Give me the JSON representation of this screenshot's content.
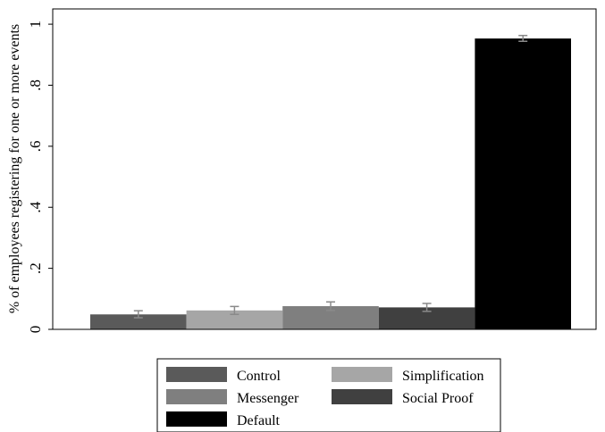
{
  "chart_data": {
    "type": "bar",
    "title": "",
    "xlabel": "",
    "ylabel": "% of employees registering for one or more events",
    "ylim": [
      0,
      1.05
    ],
    "yticks": [
      {
        "value": 0,
        "label": "0"
      },
      {
        "value": 0.2,
        "label": ".2"
      },
      {
        "value": 0.4,
        "label": ".4"
      },
      {
        "value": 0.6,
        "label": ".6"
      },
      {
        "value": 0.8,
        "label": ".8"
      },
      {
        "value": 1,
        "label": "1"
      }
    ],
    "grid": false,
    "legend_position": "bottom",
    "series": [
      {
        "name": "Control",
        "value": 0.049,
        "ci_low": 0.038,
        "ci_high": 0.061,
        "color": "#5a5a5a"
      },
      {
        "name": "Simplification",
        "value": 0.062,
        "ci_low": 0.049,
        "ci_high": 0.075,
        "color": "#a6a6a6"
      },
      {
        "name": "Messenger",
        "value": 0.076,
        "ci_low": 0.062,
        "ci_high": 0.09,
        "color": "#7f7f7f"
      },
      {
        "name": "Social Proof",
        "value": 0.072,
        "ci_low": 0.059,
        "ci_high": 0.085,
        "color": "#404040"
      },
      {
        "name": "Default",
        "value": 0.953,
        "ci_low": 0.944,
        "ci_high": 0.963,
        "color": "#000000"
      }
    ]
  }
}
